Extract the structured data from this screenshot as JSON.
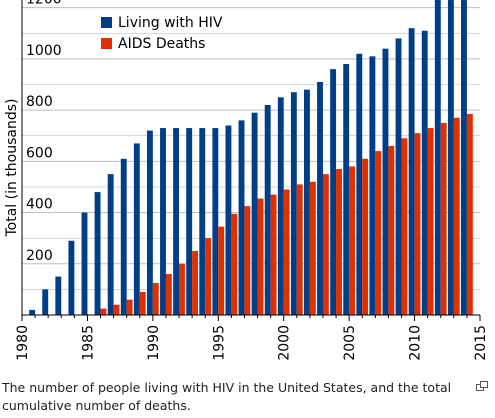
{
  "chart_data": {
    "type": "bar",
    "ylabel": "Total (in thousands)",
    "xlim": [
      1980,
      2015
    ],
    "ylim": [
      0,
      1230
    ],
    "yticks": [
      200,
      400,
      600,
      800,
      1000,
      1200
    ],
    "xticks": [
      1980,
      1985,
      1990,
      1995,
      2000,
      2005,
      2010,
      2015
    ],
    "grid": true,
    "legend_position": "top-left",
    "x": [
      1981,
      1982,
      1983,
      1984,
      1985,
      1986,
      1987,
      1988,
      1989,
      1990,
      1991,
      1992,
      1993,
      1994,
      1995,
      1996,
      1997,
      1998,
      1999,
      2000,
      2001,
      2002,
      2003,
      2004,
      2005,
      2006,
      2007,
      2008,
      2009,
      2010,
      2011,
      2012,
      2013,
      2014
    ],
    "series": [
      {
        "name": "Living with HIV",
        "color": "#003f87",
        "values": [
          20,
          100,
          150,
          290,
          400,
          480,
          550,
          610,
          670,
          720,
          730,
          730,
          730,
          730,
          730,
          740,
          760,
          790,
          820,
          850,
          870,
          880,
          910,
          960,
          980,
          1020,
          1010,
          1040,
          1080,
          1120,
          1110,
          1230,
          1230,
          1230
        ]
      },
      {
        "name": "AIDS Deaths",
        "color": "#e03000",
        "values": [
          0,
          0,
          0,
          0,
          0,
          25,
          40,
          60,
          90,
          125,
          160,
          200,
          250,
          300,
          345,
          395,
          425,
          455,
          470,
          490,
          510,
          520,
          550,
          570,
          580,
          610,
          640,
          660,
          690,
          710,
          730,
          750,
          770,
          785
        ]
      }
    ]
  },
  "caption": "The number of people living with HIV in the United States, and the total cumulative number of deaths.",
  "colors": {
    "grid": "#bfbfbf",
    "axis": "#000000"
  },
  "enlarge_icon": "enlarge-icon"
}
